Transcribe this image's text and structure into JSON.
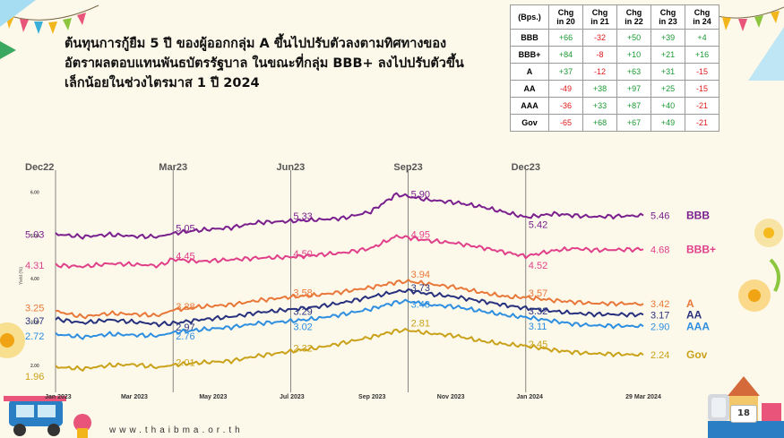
{
  "title": "ต้นทุนการกู้ยืม 5 ปี ของผู้ออกกลุ่ม A ขึ้นไปปรับตัวลงตามทิศทางของ\nอัตราผลตอบแทนพันธบัตรรัฐบาล ในขณะที่กลุ่ม BBB+ ลงไปปรับตัวขึ้น\nเล็กน้อยในช่วงไตรมาส 1 ปี 2024",
  "table": {
    "headers": [
      "(Bps.)",
      "Chg\nin 20",
      "Chg\nin 21",
      "Chg\nin 22",
      "Chg\nin 23",
      "Chg\nin 24"
    ],
    "rows": [
      {
        "label": "BBB",
        "values": [
          "+66",
          "-32",
          "+50",
          "+39",
          "+4"
        ]
      },
      {
        "label": "BBB+",
        "values": [
          "+84",
          "-8",
          "+10",
          "+21",
          "+16"
        ]
      },
      {
        "label": "A",
        "values": [
          "+37",
          "-12",
          "+63",
          "+31",
          "-15"
        ]
      },
      {
        "label": "AA",
        "values": [
          "-49",
          "+38",
          "+97",
          "+25",
          "-15"
        ]
      },
      {
        "label": "AAA",
        "values": [
          "-36",
          "+33",
          "+87",
          "+40",
          "-21"
        ]
      },
      {
        "label": "Gov",
        "values": [
          "-65",
          "+68",
          "+67",
          "+49",
          "-21"
        ]
      }
    ],
    "colors": {
      "positive": "#1a9a33",
      "negative": "#e01818"
    }
  },
  "footer": {
    "website": "www.thaibma.or.th",
    "page_number": "18"
  },
  "chart_data": {
    "type": "line",
    "x_domain": [
      "2022-12-30",
      "2024-03-29"
    ],
    "y_range": [
      1.5,
      6.3
    ],
    "ylabel": "Yield (%)",
    "y_ticks": [
      "2.00",
      "3.00",
      "4.00",
      "5.00",
      "6.00"
    ],
    "x_ticks": [
      {
        "date": "2023-01-01",
        "label": "Jan 2023"
      },
      {
        "date": "2023-03-01",
        "label": "Mar 2023"
      },
      {
        "date": "2023-05-01",
        "label": "May 2023"
      },
      {
        "date": "2023-07-01",
        "label": "Jul 2023"
      },
      {
        "date": "2023-09-01",
        "label": "Sep 2023"
      },
      {
        "date": "2023-11-01",
        "label": "Nov 2023"
      },
      {
        "date": "2024-01-01",
        "label": "Jan 2024"
      },
      {
        "date": "2024-03-29",
        "label": "29 Mar 2024"
      }
    ],
    "reference_lines": [
      {
        "date": "2022-12-30",
        "label": "Dec22"
      },
      {
        "date": "2023-03-31",
        "label": "Mar23"
      },
      {
        "date": "2023-06-30",
        "label": "Jun23"
      },
      {
        "date": "2023-09-29",
        "label": "Sep23"
      },
      {
        "date": "2023-12-29",
        "label": "Dec23"
      }
    ],
    "series": [
      {
        "name": "BBB",
        "color": "#7a1f8e",
        "points": [
          [
            "2022-12-30",
            5.03
          ],
          [
            "2023-01-20",
            4.97
          ],
          [
            "2023-02-10",
            5.02
          ],
          [
            "2023-03-01",
            4.98
          ],
          [
            "2023-03-20",
            4.97
          ],
          [
            "2023-03-31",
            5.05
          ],
          [
            "2023-04-20",
            5.12
          ],
          [
            "2023-05-15",
            5.18
          ],
          [
            "2023-06-05",
            5.3
          ],
          [
            "2023-06-30",
            5.33
          ],
          [
            "2023-07-20",
            5.36
          ],
          [
            "2023-08-10",
            5.4
          ],
          [
            "2023-08-31",
            5.55
          ],
          [
            "2023-09-20",
            5.95
          ],
          [
            "2023-09-29",
            5.9
          ],
          [
            "2023-10-15",
            5.82
          ],
          [
            "2023-11-05",
            5.76
          ],
          [
            "2023-11-25",
            5.66
          ],
          [
            "2023-12-15",
            5.52
          ],
          [
            "2023-12-29",
            5.42
          ],
          [
            "2024-01-20",
            5.5
          ],
          [
            "2024-02-05",
            5.46
          ],
          [
            "2024-02-20",
            5.43
          ],
          [
            "2024-03-29",
            5.46
          ]
        ],
        "annotations": [
          {
            "date": "2022-12-30",
            "text": "5.03",
            "side": "left",
            "dy": 0
          },
          {
            "date": "2023-03-31",
            "text": "5.05",
            "side": "right",
            "dy": -6
          },
          {
            "date": "2023-06-30",
            "text": "5.33",
            "side": "right",
            "dy": -6
          },
          {
            "date": "2023-09-29",
            "text": "5.90",
            "side": "right",
            "dy": -3
          },
          {
            "date": "2023-12-29",
            "text": "5.42",
            "side": "right",
            "dy": 8
          }
        ],
        "end_value": "5.46"
      },
      {
        "name": "BBB+",
        "color": "#e0408a",
        "points": [
          [
            "2022-12-30",
            4.31
          ],
          [
            "2023-01-20",
            4.28
          ],
          [
            "2023-02-10",
            4.35
          ],
          [
            "2023-03-01",
            4.33
          ],
          [
            "2023-03-20",
            4.3
          ],
          [
            "2023-03-31",
            4.45
          ],
          [
            "2023-04-20",
            4.4
          ],
          [
            "2023-05-15",
            4.44
          ],
          [
            "2023-06-05",
            4.48
          ],
          [
            "2023-06-30",
            4.5
          ],
          [
            "2023-07-20",
            4.55
          ],
          [
            "2023-08-10",
            4.6
          ],
          [
            "2023-08-31",
            4.7
          ],
          [
            "2023-09-20",
            4.98
          ],
          [
            "2023-09-29",
            4.95
          ],
          [
            "2023-10-15",
            4.88
          ],
          [
            "2023-11-05",
            4.82
          ],
          [
            "2023-11-25",
            4.72
          ],
          [
            "2023-12-15",
            4.6
          ],
          [
            "2023-12-29",
            4.52
          ],
          [
            "2024-01-20",
            4.65
          ],
          [
            "2024-02-05",
            4.7
          ],
          [
            "2024-02-20",
            4.66
          ],
          [
            "2024-03-29",
            4.68
          ]
        ],
        "annotations": [
          {
            "date": "2022-12-30",
            "text": "4.31",
            "side": "left",
            "dy": 0
          },
          {
            "date": "2023-03-31",
            "text": "4.45",
            "side": "right",
            "dy": -4
          },
          {
            "date": "2023-06-30",
            "text": "4.50",
            "side": "right",
            "dy": -4
          },
          {
            "date": "2023-09-29",
            "text": "4.95",
            "side": "right",
            "dy": -4
          },
          {
            "date": "2023-12-29",
            "text": "4.52",
            "side": "right",
            "dy": 10
          }
        ],
        "end_value": "4.68"
      },
      {
        "name": "A",
        "color": "#e8783a",
        "points": [
          [
            "2022-12-30",
            3.25
          ],
          [
            "2023-01-20",
            3.12
          ],
          [
            "2023-02-10",
            3.2
          ],
          [
            "2023-03-01",
            3.18
          ],
          [
            "2023-03-20",
            3.15
          ],
          [
            "2023-03-31",
            3.28
          ],
          [
            "2023-04-20",
            3.35
          ],
          [
            "2023-05-15",
            3.4
          ],
          [
            "2023-06-05",
            3.5
          ],
          [
            "2023-06-30",
            3.58
          ],
          [
            "2023-07-20",
            3.62
          ],
          [
            "2023-08-10",
            3.7
          ],
          [
            "2023-08-31",
            3.8
          ],
          [
            "2023-09-20",
            3.92
          ],
          [
            "2023-09-29",
            3.94
          ],
          [
            "2023-10-15",
            3.88
          ],
          [
            "2023-11-05",
            3.8
          ],
          [
            "2023-11-25",
            3.68
          ],
          [
            "2023-12-15",
            3.58
          ],
          [
            "2023-12-29",
            3.57
          ],
          [
            "2024-01-20",
            3.5
          ],
          [
            "2024-02-05",
            3.46
          ],
          [
            "2024-02-20",
            3.43
          ],
          [
            "2024-03-29",
            3.42
          ]
        ],
        "annotations": [
          {
            "date": "2022-12-30",
            "text": "3.25",
            "side": "left",
            "dy": -4
          },
          {
            "date": "2023-03-31",
            "text": "3.28",
            "side": "right",
            "dy": -4
          },
          {
            "date": "2023-06-30",
            "text": "3.58",
            "side": "right",
            "dy": -5
          },
          {
            "date": "2023-09-29",
            "text": "3.94",
            "side": "right",
            "dy": -8
          },
          {
            "date": "2023-12-29",
            "text": "3.57",
            "side": "right",
            "dy": -5
          }
        ],
        "end_value": "3.42"
      },
      {
        "name": "AA",
        "color": "#27317e",
        "points": [
          [
            "2022-12-30",
            3.07
          ],
          [
            "2023-01-20",
            2.98
          ],
          [
            "2023-02-10",
            3.05
          ],
          [
            "2023-03-01",
            3.0
          ],
          [
            "2023-03-20",
            2.95
          ],
          [
            "2023-03-31",
            2.97
          ],
          [
            "2023-04-20",
            3.05
          ],
          [
            "2023-05-15",
            3.12
          ],
          [
            "2023-06-05",
            3.22
          ],
          [
            "2023-06-30",
            3.29
          ],
          [
            "2023-07-20",
            3.35
          ],
          [
            "2023-08-10",
            3.45
          ],
          [
            "2023-08-31",
            3.58
          ],
          [
            "2023-09-20",
            3.7
          ],
          [
            "2023-09-29",
            3.73
          ],
          [
            "2023-10-15",
            3.65
          ],
          [
            "2023-11-05",
            3.58
          ],
          [
            "2023-11-25",
            3.48
          ],
          [
            "2023-12-15",
            3.38
          ],
          [
            "2023-12-29",
            3.32
          ],
          [
            "2024-01-20",
            3.25
          ],
          [
            "2024-02-05",
            3.2
          ],
          [
            "2024-02-20",
            3.18
          ],
          [
            "2024-03-29",
            3.17
          ]
        ],
        "annotations": [
          {
            "date": "2022-12-30",
            "text": "3.07",
            "side": "left",
            "dy": 2
          },
          {
            "date": "2023-03-31",
            "text": "2.97",
            "side": "right",
            "dy": 4
          },
          {
            "date": "2023-06-30",
            "text": "3.29",
            "side": "right",
            "dy": 2
          },
          {
            "date": "2023-09-29",
            "text": "3.73",
            "side": "right",
            "dy": -3
          },
          {
            "date": "2023-12-29",
            "text": "3.32",
            "side": "right",
            "dy": 3
          }
        ],
        "end_value": "3.17"
      },
      {
        "name": "AAA",
        "color": "#2e8ee0",
        "points": [
          [
            "2022-12-30",
            2.72
          ],
          [
            "2023-01-20",
            2.65
          ],
          [
            "2023-02-10",
            2.72
          ],
          [
            "2023-03-01",
            2.7
          ],
          [
            "2023-03-20",
            2.68
          ],
          [
            "2023-03-31",
            2.76
          ],
          [
            "2023-04-20",
            2.82
          ],
          [
            "2023-05-15",
            2.88
          ],
          [
            "2023-06-05",
            2.97
          ],
          [
            "2023-06-30",
            3.02
          ],
          [
            "2023-07-20",
            3.08
          ],
          [
            "2023-08-10",
            3.18
          ],
          [
            "2023-08-31",
            3.3
          ],
          [
            "2023-09-20",
            3.46
          ],
          [
            "2023-09-29",
            3.48
          ],
          [
            "2023-10-15",
            3.4
          ],
          [
            "2023-11-05",
            3.35
          ],
          [
            "2023-11-25",
            3.25
          ],
          [
            "2023-12-15",
            3.15
          ],
          [
            "2023-12-29",
            3.11
          ],
          [
            "2024-01-20",
            3.02
          ],
          [
            "2024-02-05",
            2.95
          ],
          [
            "2024-02-20",
            2.92
          ],
          [
            "2024-03-29",
            2.9
          ]
        ],
        "annotations": [
          {
            "date": "2022-12-30",
            "text": "2.72",
            "side": "left",
            "dy": 2
          },
          {
            "date": "2023-03-31",
            "text": "2.76",
            "side": "right",
            "dy": 4
          },
          {
            "date": "2023-06-30",
            "text": "3.02",
            "side": "right",
            "dy": 6
          },
          {
            "date": "2023-09-29",
            "text": "3.48",
            "side": "right",
            "dy": 3
          },
          {
            "date": "2023-12-29",
            "text": "3.11",
            "side": "right",
            "dy": 10
          }
        ],
        "end_value": "2.90"
      },
      {
        "name": "Gov",
        "color": "#c9a21a",
        "points": [
          [
            "2022-12-30",
            1.96
          ],
          [
            "2023-01-20",
            1.92
          ],
          [
            "2023-02-10",
            2.0
          ],
          [
            "2023-03-01",
            2.02
          ],
          [
            "2023-03-20",
            1.95
          ],
          [
            "2023-03-31",
            2.01
          ],
          [
            "2023-04-20",
            2.06
          ],
          [
            "2023-05-15",
            2.1
          ],
          [
            "2023-06-05",
            2.22
          ],
          [
            "2023-06-30",
            2.32
          ],
          [
            "2023-07-20",
            2.4
          ],
          [
            "2023-08-10",
            2.52
          ],
          [
            "2023-08-31",
            2.65
          ],
          [
            "2023-09-20",
            2.8
          ],
          [
            "2023-09-29",
            2.81
          ],
          [
            "2023-10-15",
            2.74
          ],
          [
            "2023-11-05",
            2.68
          ],
          [
            "2023-11-25",
            2.56
          ],
          [
            "2023-12-15",
            2.48
          ],
          [
            "2023-12-29",
            2.45
          ],
          [
            "2024-01-20",
            2.35
          ],
          [
            "2024-02-05",
            2.3
          ],
          [
            "2024-02-20",
            2.27
          ],
          [
            "2024-03-29",
            2.24
          ]
        ],
        "annotations": [
          {
            "date": "2022-12-30",
            "text": "1.96",
            "side": "left",
            "dy": 10
          },
          {
            "date": "2023-03-31",
            "text": "2.01",
            "side": "right",
            "dy": -3
          },
          {
            "date": "2023-06-30",
            "text": "2.32",
            "side": "right",
            "dy": -4
          },
          {
            "date": "2023-09-29",
            "text": "2.81",
            "side": "right",
            "dy": -8
          },
          {
            "date": "2023-12-29",
            "text": "2.45",
            "side": "right",
            "dy": -2
          }
        ],
        "end_value": "2.24"
      }
    ]
  }
}
